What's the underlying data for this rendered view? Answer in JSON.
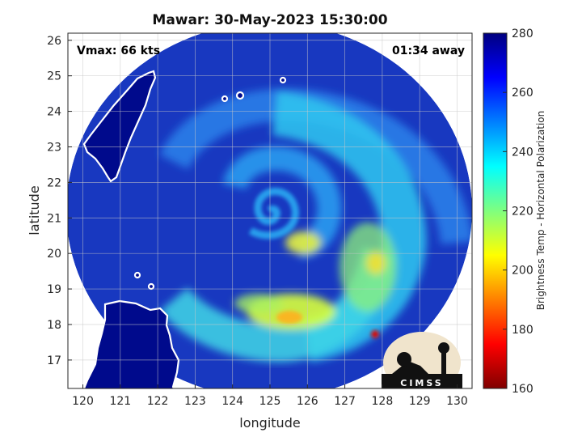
{
  "chart_data": {
    "type": "heatmap",
    "title": "Mawar: 30-May-2023 15:30:00",
    "xlabel": "longitude",
    "ylabel": "latitude",
    "xlim": [
      119.6,
      130.4
    ],
    "ylim": [
      16.2,
      26.2
    ],
    "xticks": [
      "120",
      "121",
      "122",
      "123",
      "124",
      "125",
      "126",
      "127",
      "128",
      "129",
      "130"
    ],
    "yticks": [
      "17",
      "18",
      "19",
      "20",
      "21",
      "22",
      "23",
      "24",
      "25",
      "26"
    ],
    "grid": true,
    "annotations": {
      "vmax": "Vmax: 66 kts",
      "time_offset": "01:34 away"
    },
    "storm_center": {
      "lon": 125.0,
      "lat": 21.4
    },
    "colorbar": {
      "label": "Brightness Temp - Horizontal Polarization",
      "range": [
        160,
        280
      ],
      "ticks": [
        "280",
        "260",
        "240",
        "220",
        "200",
        "180",
        "160"
      ],
      "colormap": "jet"
    },
    "logo_text": "CIMSS"
  },
  "colors": {
    "background_dark": "#1535b8",
    "land": "#000a8c",
    "coastline": "#ffffff"
  }
}
